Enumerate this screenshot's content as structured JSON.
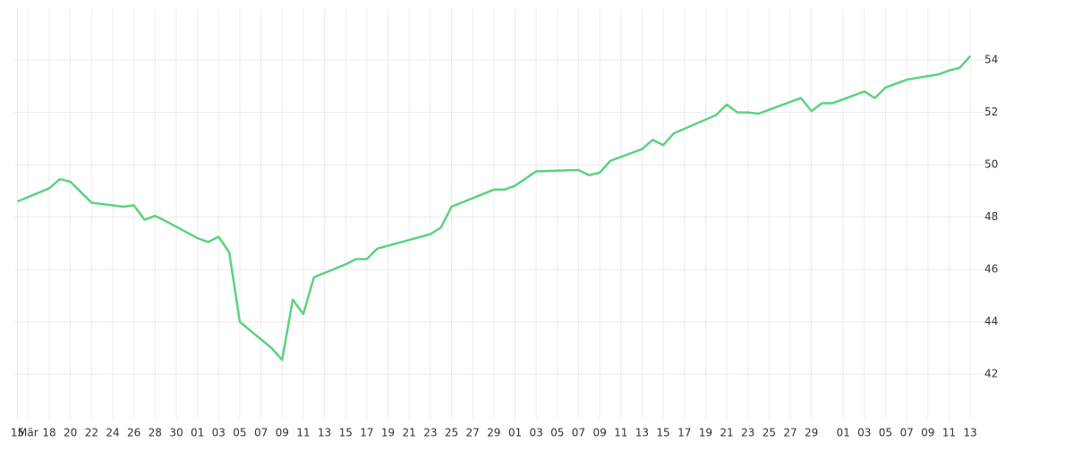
{
  "chart_data": {
    "type": "line",
    "x": [
      0,
      3,
      4,
      5,
      7,
      10,
      11,
      12,
      13,
      14,
      17,
      18,
      19,
      20,
      21,
      24,
      25,
      26,
      27,
      28,
      31,
      32,
      33,
      34,
      39,
      40,
      41,
      45,
      46,
      47,
      49,
      53,
      54,
      55,
      56,
      59,
      60,
      61,
      62,
      66,
      67,
      68,
      69,
      70,
      74,
      75,
      76,
      77,
      80,
      81,
      82,
      84,
      87,
      88,
      89,
      90
    ],
    "series": [
      {
        "color": "#5ad37f",
        "values": [
          48.6,
          49.1,
          49.45,
          49.35,
          48.55,
          48.4,
          48.45,
          47.9,
          48.05,
          47.85,
          47.2,
          47.05,
          47.25,
          46.65,
          44.0,
          43.0,
          42.55,
          44.85,
          44.3,
          45.7,
          46.2,
          46.4,
          46.4,
          46.8,
          47.35,
          47.6,
          48.4,
          49.05,
          49.05,
          49.2,
          49.75,
          49.8,
          49.6,
          49.7,
          50.15,
          50.6,
          50.95,
          50.75,
          51.2,
          51.9,
          52.3,
          52.0,
          52.0,
          51.95,
          52.55,
          52.05,
          52.35,
          52.35,
          52.8,
          52.55,
          52.95,
          53.25,
          53.45,
          53.6,
          53.7,
          54.15
        ]
      }
    ],
    "xlim": [
      -0.3,
      92.7
    ],
    "xticks": [
      {
        "value": 0,
        "label": "15"
      },
      {
        "value": 1,
        "label": "Mär"
      },
      {
        "value": 3,
        "label": "18"
      },
      {
        "value": 5,
        "label": "20"
      },
      {
        "value": 7,
        "label": "22"
      },
      {
        "value": 9,
        "label": "24"
      },
      {
        "value": 11,
        "label": "26"
      },
      {
        "value": 13,
        "label": "28"
      },
      {
        "value": 15,
        "label": "30"
      },
      {
        "value": 17,
        "label": "01"
      },
      {
        "value": 19,
        "label": "03"
      },
      {
        "value": 21,
        "label": "05"
      },
      {
        "value": 23,
        "label": "07"
      },
      {
        "value": 25,
        "label": "09"
      },
      {
        "value": 27,
        "label": "11"
      },
      {
        "value": 29,
        "label": "13"
      },
      {
        "value": 31,
        "label": "15"
      },
      {
        "value": 33,
        "label": "17"
      },
      {
        "value": 35,
        "label": "19"
      },
      {
        "value": 37,
        "label": "21"
      },
      {
        "value": 39,
        "label": "23"
      },
      {
        "value": 41,
        "label": "25"
      },
      {
        "value": 43,
        "label": "27"
      },
      {
        "value": 45,
        "label": "29"
      },
      {
        "value": 47,
        "label": "01"
      },
      {
        "value": 49,
        "label": "03"
      },
      {
        "value": 51,
        "label": "05"
      },
      {
        "value": 53,
        "label": "07"
      },
      {
        "value": 55,
        "label": "09"
      },
      {
        "value": 57,
        "label": "11"
      },
      {
        "value": 59,
        "label": "13"
      },
      {
        "value": 61,
        "label": "15"
      },
      {
        "value": 63,
        "label": "17"
      },
      {
        "value": 65,
        "label": "19"
      },
      {
        "value": 67,
        "label": "21"
      },
      {
        "value": 69,
        "label": "23"
      },
      {
        "value": 71,
        "label": "25"
      },
      {
        "value": 73,
        "label": "27"
      },
      {
        "value": 75,
        "label": "29"
      },
      {
        "value": 78,
        "label": "01"
      },
      {
        "value": 80,
        "label": "03"
      },
      {
        "value": 82,
        "label": "05"
      },
      {
        "value": 84,
        "label": "07"
      },
      {
        "value": 86,
        "label": "09"
      },
      {
        "value": 88,
        "label": "11"
      },
      {
        "value": 90,
        "label": "13"
      }
    ],
    "ylim": [
      40.3,
      55.95
    ],
    "yticks": [
      42,
      44,
      46,
      48,
      50,
      52,
      54
    ],
    "grid": true
  }
}
